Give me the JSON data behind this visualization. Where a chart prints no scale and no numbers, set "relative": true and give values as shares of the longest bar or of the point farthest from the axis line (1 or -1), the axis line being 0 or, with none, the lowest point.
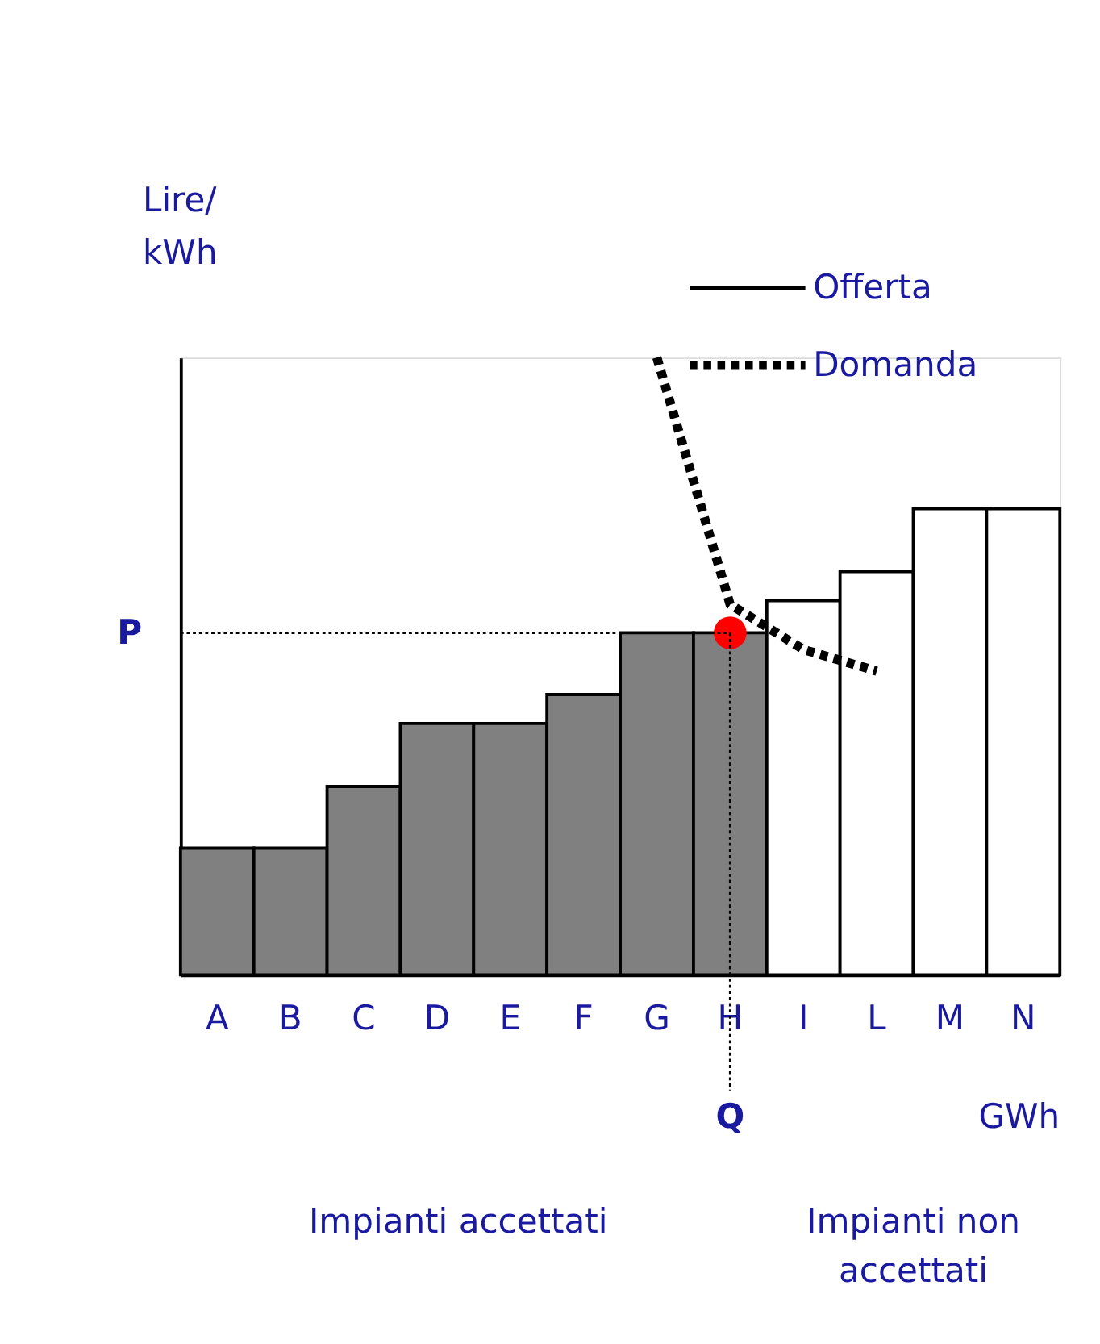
{
  "chart_data": {
    "type": "bar",
    "relative": true,
    "xlabel": "GWh",
    "ylabel": "Lire/kWh",
    "categories": [
      "A",
      "B",
      "C",
      "D",
      "E",
      "F",
      "G",
      "H",
      "I",
      "L",
      "M",
      "N"
    ],
    "series": [
      {
        "name": "Offerta",
        "colors": [
          "#808080",
          "#808080",
          "#808080",
          "#808080",
          "#808080",
          "#808080",
          "#808080",
          "#808080",
          "#ffffff",
          "#ffffff",
          "#ffffff",
          "#ffffff"
        ],
        "values": [
          0.205,
          0.205,
          0.305,
          0.407,
          0.407,
          0.454,
          0.554,
          0.554,
          0.606,
          0.653,
          0.755,
          0.755
        ]
      },
      {
        "name": "Domanda",
        "type": "line",
        "color": "#000000",
        "line_style": "dotted",
        "x": [
          "G",
          "H",
          "I",
          "L"
        ],
        "values": [
          1.0,
          0.6,
          0.527,
          0.492
        ]
      },
      {
        "type": "scatter",
        "color": "#ff0000",
        "marker": "circle",
        "x": [
          "H"
        ],
        "values": [
          0.554
        ]
      }
    ],
    "ref_lines": [
      {
        "axis": "y",
        "value": 0.554,
        "label": "P",
        "line_style": "dotted",
        "color": "#000000"
      },
      {
        "axis": "x",
        "value": "H",
        "label": "Q",
        "line_style": "dotted",
        "color": "#000000"
      }
    ],
    "annotations": [
      "Impianti accettati",
      "Impianti non accettati"
    ],
    "legend": "top right",
    "grid": false
  }
}
